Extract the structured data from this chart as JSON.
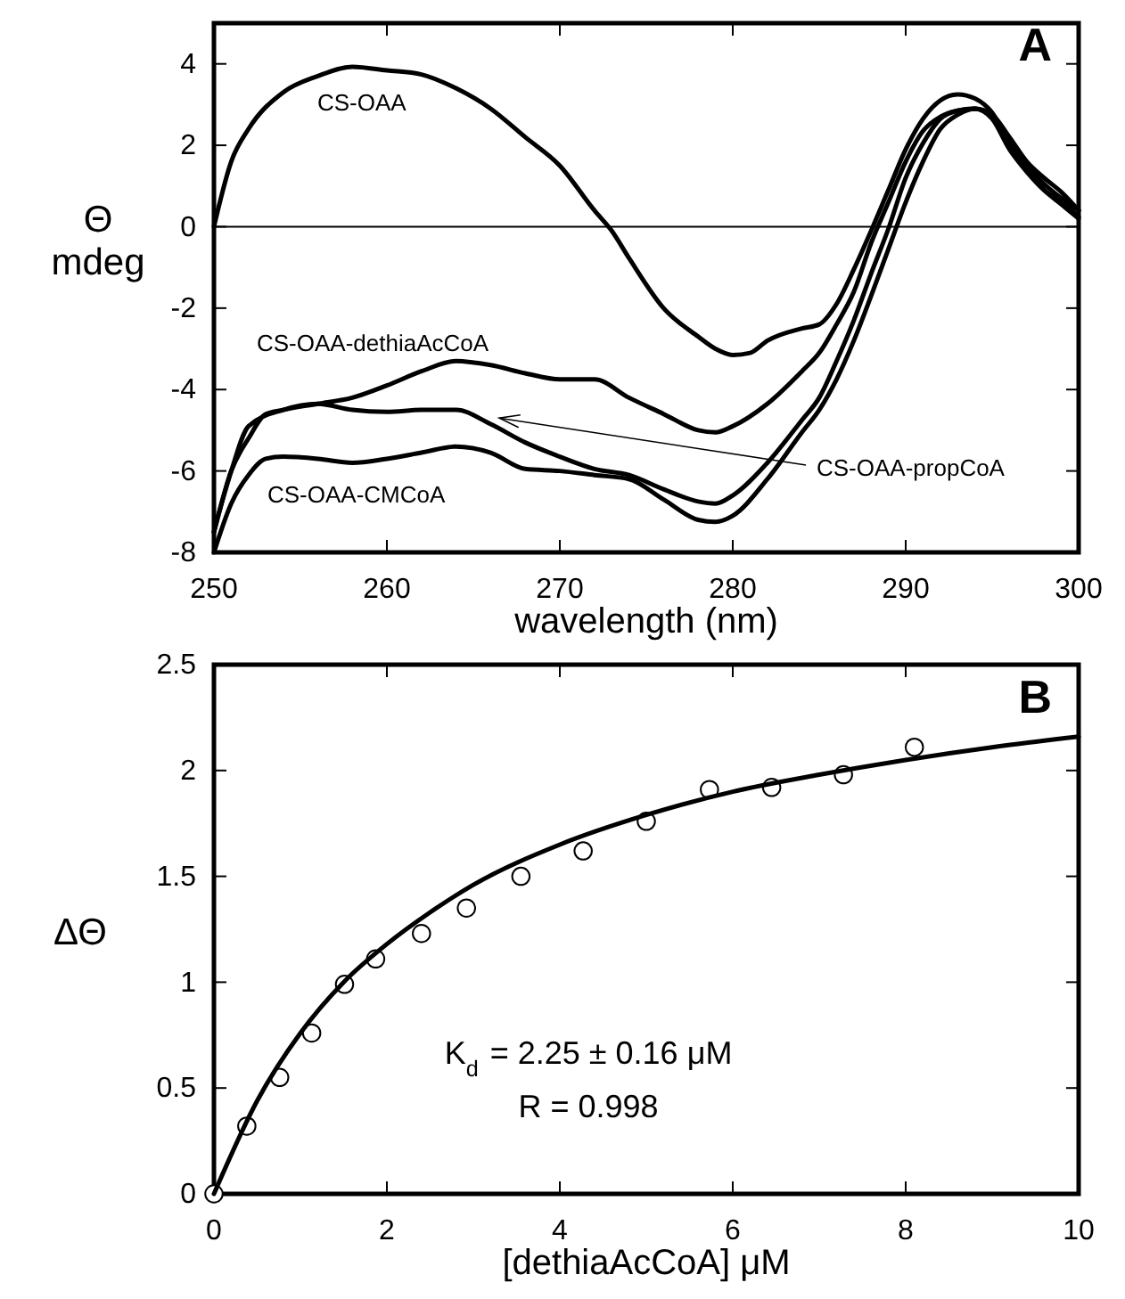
{
  "chart_data": [
    {
      "type": "line",
      "xlabel": "wavelength (nm)",
      "ylabel": "Θ mdeg",
      "xlim": [
        250,
        300
      ],
      "ylim": [
        -8,
        5
      ],
      "xticks": [
        250,
        260,
        270,
        280,
        290,
        300
      ],
      "yticks": [
        -8,
        -6,
        -4,
        -2,
        0,
        2,
        4
      ],
      "marker": "none",
      "line_style": "solid",
      "ref_lines": [
        {
          "axis": "y",
          "value": 0,
          "color": "#000000"
        }
      ],
      "annotations": [
        "A",
        {
          "text": "CS-OAA-propCoA",
          "x": 266.5,
          "y": -4.7
        }
      ],
      "series": [
        {
          "name": "CS-OAA",
          "color": "#000000",
          "x": [
            250,
            251,
            252,
            254,
            256,
            258,
            260,
            262,
            264,
            266,
            268,
            270,
            272,
            273,
            274,
            276,
            278,
            279,
            280,
            281,
            282,
            284,
            285,
            286,
            287,
            288,
            289,
            290,
            291,
            292,
            293,
            294,
            295,
            296,
            297,
            298,
            299,
            300
          ],
          "values": [
            0,
            1.6,
            2.4,
            3.3,
            3.7,
            3.93,
            3.84,
            3.74,
            3.4,
            2.9,
            2.2,
            1.5,
            0.4,
            -0.1,
            -0.77,
            -2.0,
            -2.7,
            -3.0,
            -3.15,
            -3.1,
            -2.8,
            -2.5,
            -2.4,
            -1.9,
            -1.05,
            -0.1,
            0.9,
            1.9,
            2.65,
            3.1,
            3.25,
            3.15,
            2.8,
            2.05,
            1.4,
            0.9,
            0.55,
            0.2
          ]
        },
        {
          "name": "CS-OAA-dethiaAcCoA",
          "color": "#000000",
          "x": [
            250,
            251,
            252,
            253,
            254,
            256,
            258,
            260,
            262,
            264,
            266,
            268,
            270,
            272,
            274,
            276,
            278,
            279,
            280,
            282,
            284,
            285,
            286,
            287,
            288,
            289,
            290,
            291,
            292,
            293,
            294,
            295,
            296,
            297,
            298,
            299,
            300
          ],
          "values": [
            -7.5,
            -6.0,
            -5.2,
            -4.6,
            -4.5,
            -4.35,
            -4.2,
            -3.9,
            -3.55,
            -3.3,
            -3.4,
            -3.6,
            -3.75,
            -3.75,
            -4.2,
            -4.6,
            -5.0,
            -5.05,
            -4.9,
            -4.35,
            -3.55,
            -3.1,
            -2.4,
            -1.6,
            -0.4,
            0.6,
            1.6,
            2.35,
            2.7,
            2.85,
            2.9,
            2.65,
            1.9,
            1.35,
            0.9,
            0.6,
            0.25
          ]
        },
        {
          "color": "#000000",
          "x": [
            250,
            251,
            252,
            254,
            256,
            258,
            260,
            262,
            264,
            266,
            268,
            270,
            272,
            274,
            276,
            278,
            279,
            280,
            282,
            284,
            285,
            286,
            287,
            288,
            289,
            290,
            291,
            292,
            293,
            294,
            295,
            296,
            297,
            298,
            299,
            300
          ],
          "values": [
            -7.5,
            -6.0,
            -4.9,
            -4.5,
            -4.35,
            -4.5,
            -4.55,
            -4.5,
            -4.5,
            -4.85,
            -5.3,
            -5.65,
            -5.95,
            -6.1,
            -6.45,
            -6.75,
            -6.8,
            -6.6,
            -5.8,
            -4.75,
            -4.2,
            -3.3,
            -2.3,
            -1.15,
            -0.05,
            1.2,
            2.05,
            2.65,
            2.85,
            2.9,
            2.7,
            2.05,
            1.5,
            1.05,
            0.7,
            0.4
          ]
        },
        {
          "name": "CS-OAA-CMCoA",
          "color": "#000000",
          "x": [
            250,
            251,
            252,
            253,
            254,
            256,
            258,
            260,
            262,
            264,
            266,
            268,
            270,
            272,
            274,
            276,
            278,
            279,
            280,
            282,
            284,
            285,
            286,
            287,
            288,
            289,
            290,
            291,
            292,
            293,
            294,
            295,
            296,
            297,
            298,
            299,
            300
          ],
          "values": [
            -8,
            -6.8,
            -6.1,
            -5.7,
            -5.65,
            -5.7,
            -5.8,
            -5.7,
            -5.55,
            -5.4,
            -5.55,
            -5.95,
            -6.0,
            -6.1,
            -6.2,
            -6.7,
            -7.2,
            -7.25,
            -7.1,
            -6.2,
            -5.05,
            -4.5,
            -3.75,
            -2.8,
            -1.7,
            -0.55,
            0.6,
            1.6,
            2.4,
            2.75,
            2.9,
            2.75,
            2.2,
            1.6,
            1.2,
            0.85,
            0.4
          ]
        }
      ]
    },
    {
      "type": "scatter",
      "xlabel": "[dethiaAcCoA] μM",
      "ylabel": "ΔΘ",
      "xlim": [
        0,
        10
      ],
      "ylim": [
        0,
        2.5
      ],
      "xticks": [
        0,
        2,
        4,
        6,
        8,
        10
      ],
      "yticks": [
        0,
        0.5,
        1,
        1.5,
        2,
        2.5
      ],
      "marker": "circle",
      "annotations": [
        "B",
        "K$_{d}$ = 2.25 ± 0.16 μM",
        "R = 0.998"
      ],
      "series": [
        {
          "color": "#000000",
          "x": [
            0,
            0.38,
            0.76,
            1.13,
            1.51,
            1.87,
            2.4,
            2.92,
            3.55,
            4.27,
            5.0,
            5.73,
            6.45,
            7.28,
            8.1
          ],
          "values": [
            0,
            0.32,
            0.55,
            0.76,
            0.99,
            1.11,
            1.23,
            1.35,
            1.5,
            1.62,
            1.76,
            1.91,
            1.92,
            1.98,
            2.11
          ]
        },
        {
          "type": "line",
          "marker": "none",
          "color": "#000000",
          "x": [
            0,
            0.5,
            1,
            1.5,
            2,
            2.5,
            3,
            4,
            5,
            6,
            7,
            8,
            9,
            10
          ],
          "values": [
            0,
            0.44,
            0.76,
            1.0,
            1.18,
            1.33,
            1.46,
            1.65,
            1.79,
            1.9,
            1.98,
            2.05,
            2.11,
            2.16
          ]
        }
      ]
    }
  ]
}
